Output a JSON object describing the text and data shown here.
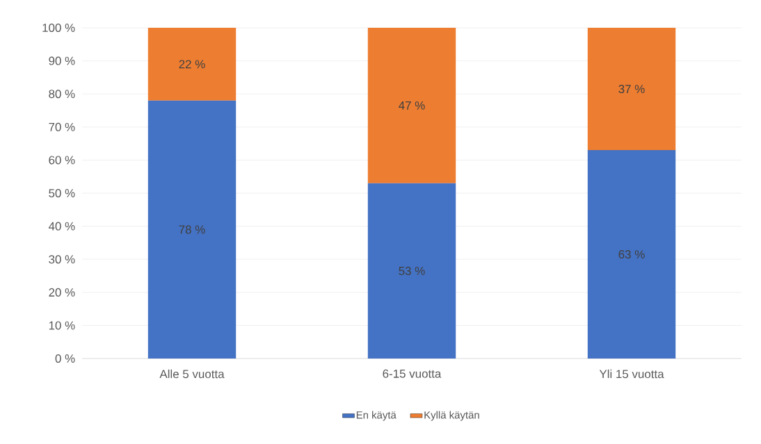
{
  "chart_data": {
    "type": "bar",
    "stacked": true,
    "categories": [
      "Alle 5 vuotta",
      "6-15 vuotta",
      "Yli 15 vuotta"
    ],
    "series": [
      {
        "name": "En käytä",
        "color": "#4472c4",
        "values": [
          78,
          53,
          63
        ],
        "value_labels": [
          "78 %",
          "53 %",
          "63 %"
        ]
      },
      {
        "name": "Kyllä käytän",
        "color": "#ed7d31",
        "values": [
          22,
          47,
          37
        ],
        "value_labels": [
          "22 %",
          "47 %",
          "37 %"
        ]
      }
    ],
    "ylim": [
      0,
      100
    ],
    "yticks": [
      {
        "value": 0,
        "label": "0 %"
      },
      {
        "value": 10,
        "label": "10 %"
      },
      {
        "value": 20,
        "label": "20 %"
      },
      {
        "value": 30,
        "label": "30 %"
      },
      {
        "value": 40,
        "label": "40 %"
      },
      {
        "value": 50,
        "label": "50 %"
      },
      {
        "value": 60,
        "label": "60 %"
      },
      {
        "value": 70,
        "label": "70 %"
      },
      {
        "value": 80,
        "label": "80 %"
      },
      {
        "value": 90,
        "label": "90 %"
      },
      {
        "value": 100,
        "label": "100 %"
      }
    ],
    "grid": "y",
    "legend": "bottom"
  }
}
